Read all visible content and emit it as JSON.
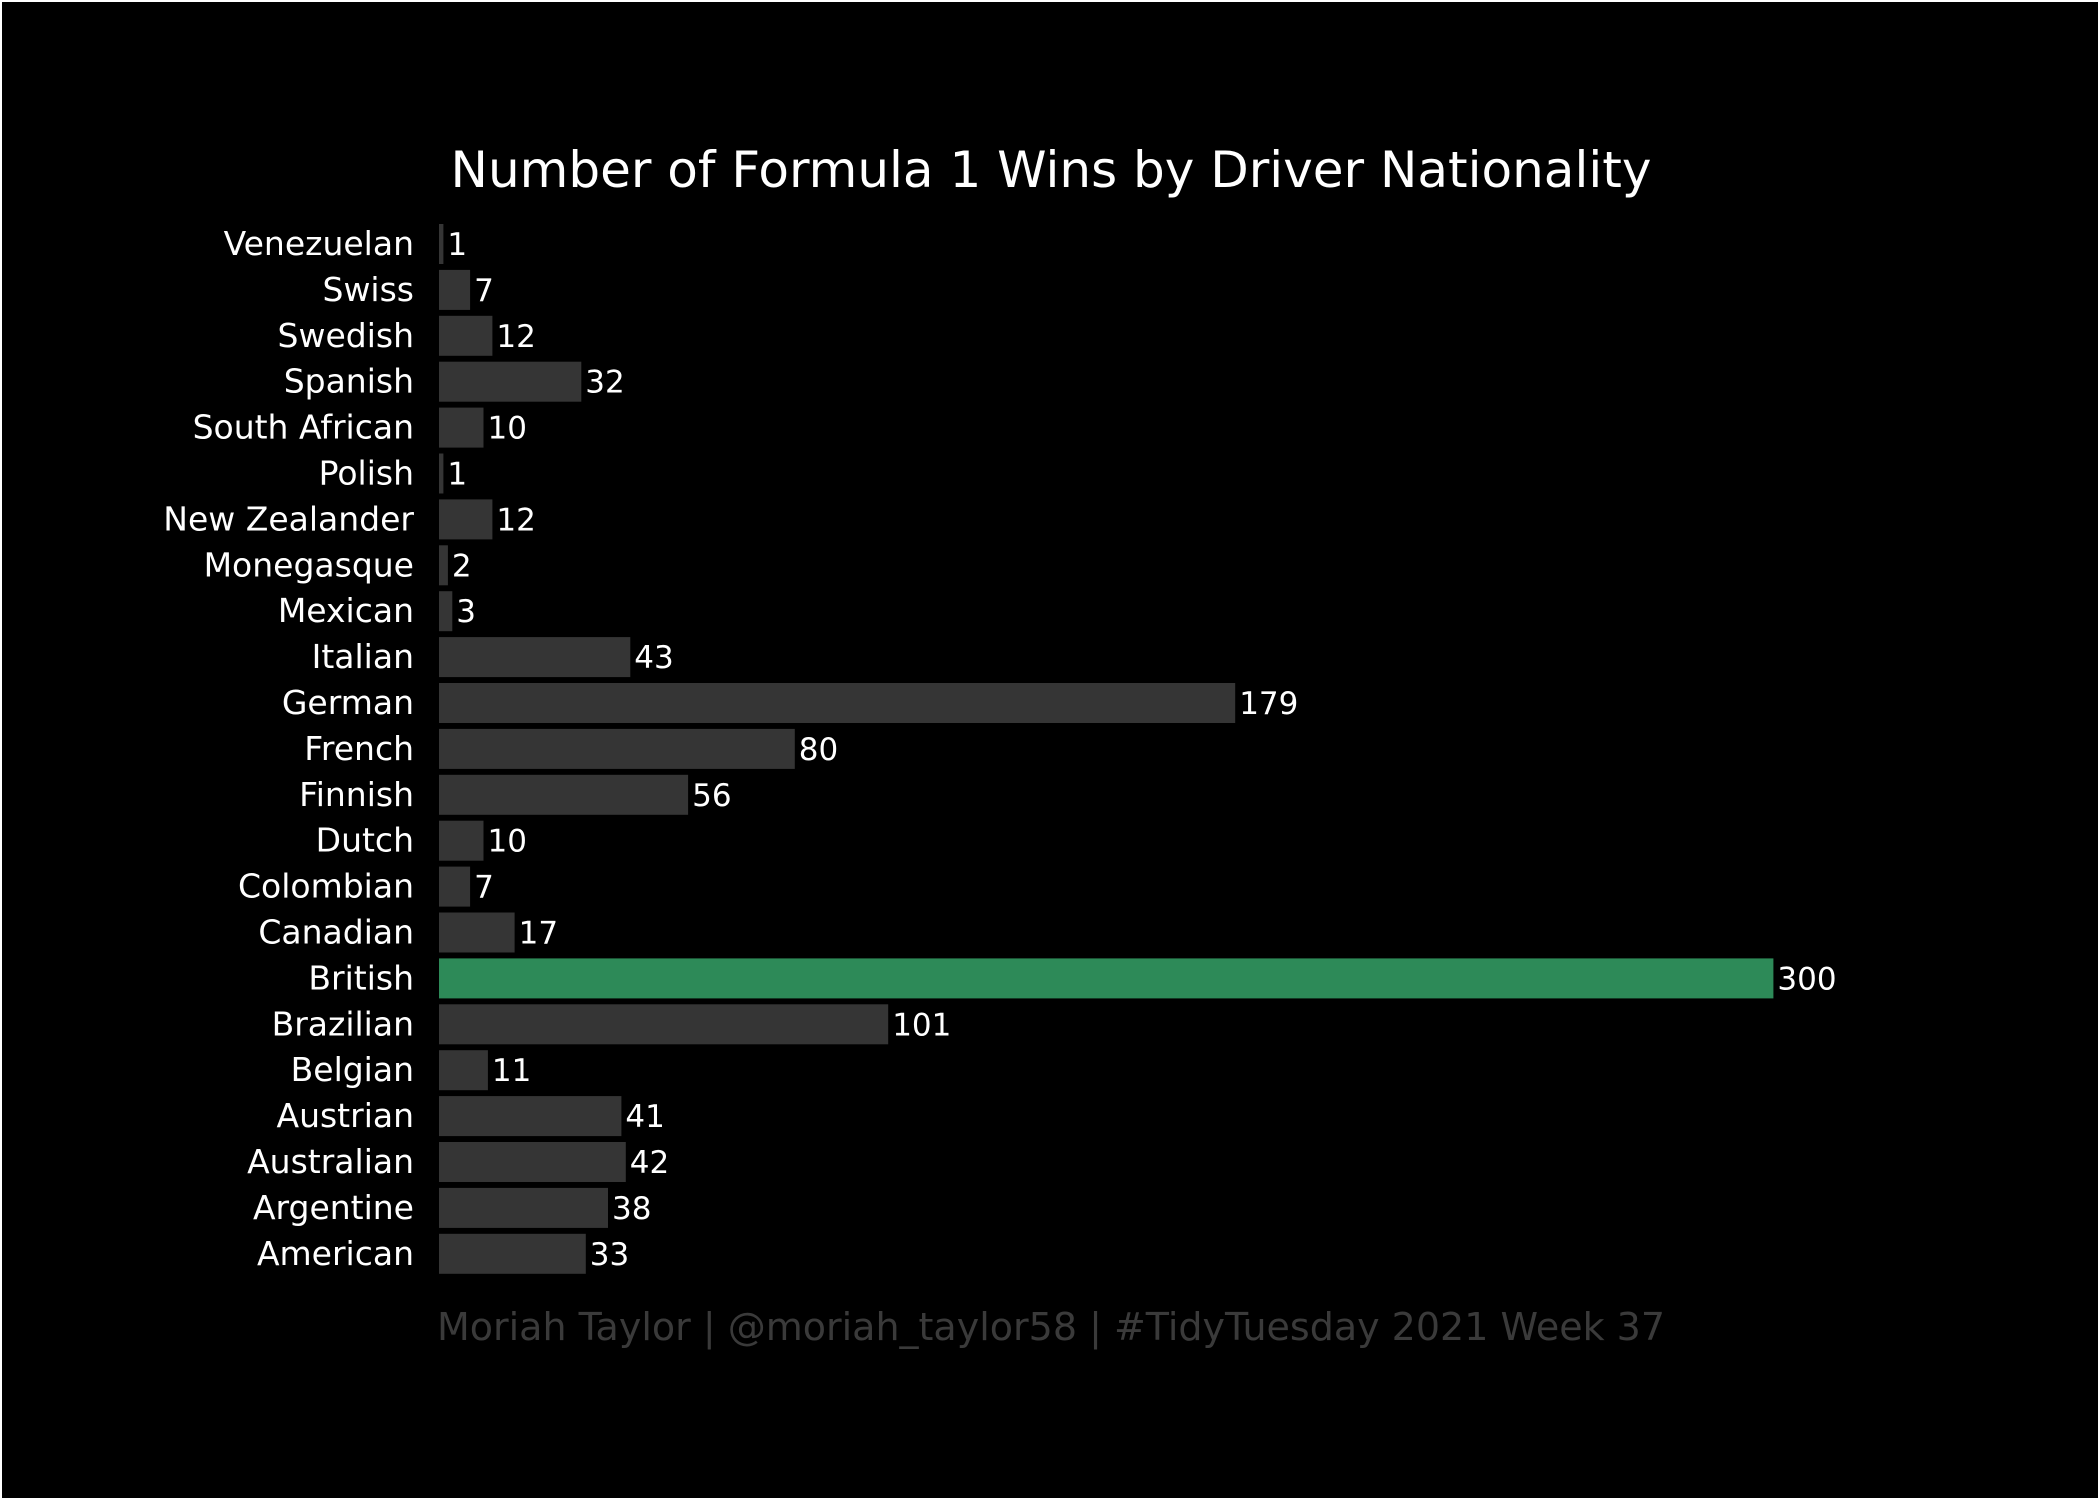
{
  "chart_data": {
    "type": "bar",
    "orientation": "horizontal",
    "title": "Number of Formula 1 Wins by Driver Nationality",
    "caption": "Moriah Taylor | @moriah_taylor58 | #TidyTuesday 2021 Week 37",
    "xlabel": "",
    "ylabel": "",
    "xlim": [
      0,
      300
    ],
    "grid": false,
    "legend": "none",
    "categories": [
      "Venezuelan",
      "Swiss",
      "Swedish",
      "Spanish",
      "South African",
      "Polish",
      "New Zealander",
      "Monegasque",
      "Mexican",
      "Italian",
      "German",
      "French",
      "Finnish",
      "Dutch",
      "Colombian",
      "Canadian",
      "British",
      "Brazilian",
      "Belgian",
      "Austrian",
      "Australian",
      "Argentine",
      "American"
    ],
    "values": [
      1,
      7,
      12,
      32,
      10,
      1,
      12,
      2,
      3,
      43,
      179,
      80,
      56,
      10,
      7,
      17,
      300,
      101,
      11,
      41,
      42,
      38,
      33
    ],
    "highlight": "British"
  },
  "colors": {
    "background": "#000000",
    "bar": "#353535",
    "highlight": "#2d8a58",
    "text": "#ffffff",
    "caption": "#3a3a3a"
  }
}
